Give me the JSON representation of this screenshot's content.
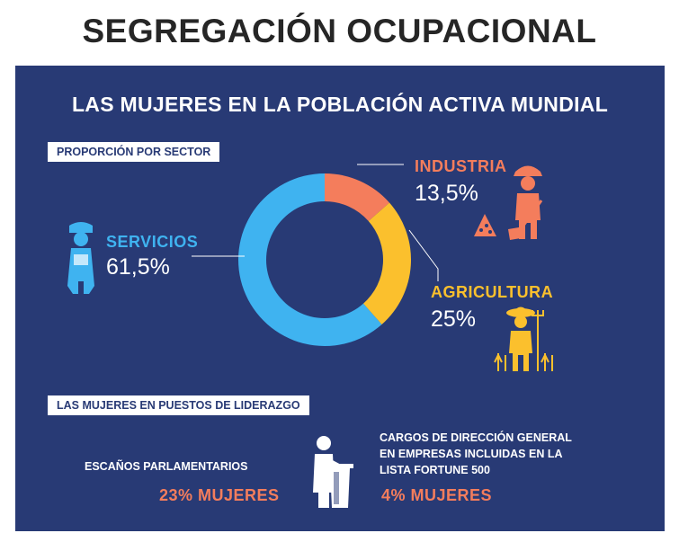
{
  "header": {
    "title": "SEGREGACIÓN OCUPACIONAL"
  },
  "panel": {
    "title": "LAS MUJERES EN LA POBLACIÓN ACTIVA MUNDIAL",
    "sector_tag": "PROPORCIÓN POR SECTOR",
    "leadership_tag": "LAS MUJERES EN PUESTOS DE LIDERAZGO"
  },
  "colors": {
    "background": "#283a75",
    "servicios": "#3fb3f0",
    "industria": "#f47d5c",
    "agricultura": "#fbc02d"
  },
  "icons": {
    "servicios": "nurse-icon",
    "industria": "construction-worker-icon",
    "agricultura": "farmer-icon",
    "leadership": "speaker-at-podium-icon"
  },
  "chart_data": {
    "type": "pie",
    "title": "PROPORCIÓN POR SECTOR",
    "categories": [
      "INDUSTRIA",
      "AGRICULTURA",
      "SERVICIOS"
    ],
    "values": [
      13.5,
      25,
      61.5
    ],
    "value_labels": [
      "13,5%",
      "25%",
      "61,5%"
    ],
    "colors": [
      "#f47d5c",
      "#fbc02d",
      "#3fb3f0"
    ],
    "donut": true,
    "unit": "%"
  },
  "leadership": {
    "parliament_label": "ESCAÑOS PARLAMENTARIOS",
    "parliament_value": "23% MUJERES",
    "ceo_label_lines": [
      "CARGOS DE DIRECCIÓN GENERAL",
      "EN EMPRESAS INCLUIDAS EN LA",
      "LISTA FORTUNE 500"
    ],
    "ceo_value": "4% MUJERES"
  }
}
